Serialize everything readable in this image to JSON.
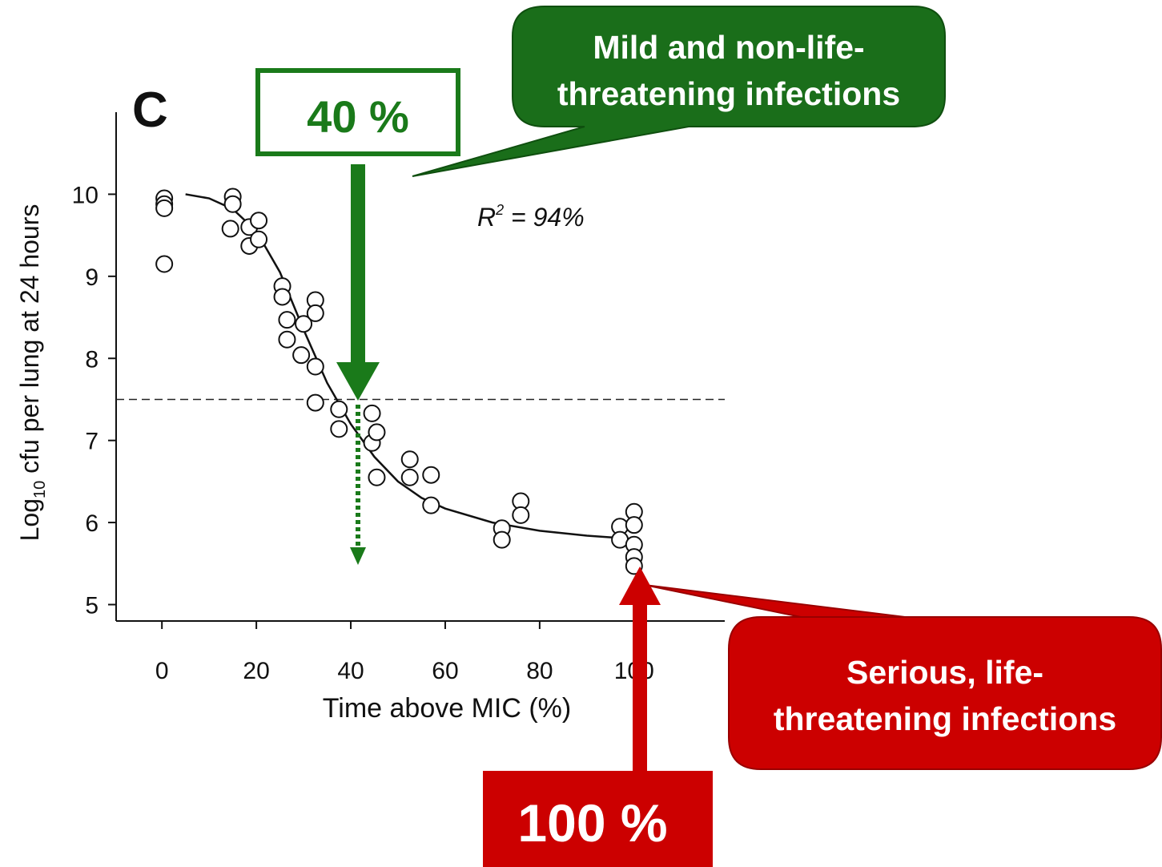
{
  "chart_data": {
    "type": "scatter",
    "panel_label": "C",
    "x_label": "Time above MIC (%)",
    "y_label": {
      "before": "Log",
      "subscript": "10",
      "after": " cfu per lung at 24 hours"
    },
    "r_squared": {
      "symbol": "R",
      "superscript": "2",
      "text": " = 94%"
    },
    "xlim": [
      -9.7,
      119.2
    ],
    "ylim": [
      4.8,
      11.0
    ],
    "xticks": [
      0,
      20,
      40,
      60,
      80,
      100
    ],
    "yticks": [
      5,
      6,
      7,
      8,
      9,
      10
    ],
    "reference_line": 7.5,
    "series": [
      {
        "name": "observations",
        "x": [
          0.5,
          0.5,
          0.5,
          0.5,
          15,
          15,
          14.5,
          18.5,
          18.5,
          20.5,
          20.5,
          25.5,
          25.5,
          26.5,
          26.5,
          30,
          29.5,
          32.5,
          32.5,
          32.5,
          32.5,
          37.5,
          37.5,
          44.5,
          44.5,
          45.5,
          45.5,
          52.5,
          52.5,
          57,
          57,
          72,
          72,
          76,
          76,
          97,
          97,
          100,
          100,
          100,
          100,
          100
        ],
        "values": [
          9.95,
          9.88,
          9.83,
          9.15,
          9.97,
          9.88,
          9.58,
          9.6,
          9.37,
          9.68,
          9.45,
          8.88,
          8.75,
          8.47,
          8.23,
          8.42,
          8.04,
          8.71,
          8.55,
          7.9,
          7.46,
          7.38,
          7.14,
          7.33,
          6.97,
          7.1,
          6.55,
          6.77,
          6.55,
          6.58,
          6.21,
          5.93,
          5.79,
          6.26,
          6.09,
          5.95,
          5.79,
          6.13,
          5.97,
          5.73,
          5.58,
          5.47
        ]
      },
      {
        "name": "fit",
        "x": [
          5,
          10,
          15,
          20,
          25,
          30,
          35,
          40,
          45,
          50,
          55,
          60,
          70,
          80,
          90,
          100
        ],
        "values": [
          10.0,
          9.95,
          9.82,
          9.55,
          9.05,
          8.35,
          7.7,
          7.2,
          6.8,
          6.5,
          6.3,
          6.17,
          6.0,
          5.9,
          5.84,
          5.8
        ]
      }
    ],
    "annotations": {
      "mild_box": "40 %",
      "mild_callout": [
        "Mild and non-life-",
        "threatening infections"
      ],
      "serious_box": "100 %",
      "serious_callout": [
        "Serious, life-",
        "threatening infections"
      ]
    }
  }
}
